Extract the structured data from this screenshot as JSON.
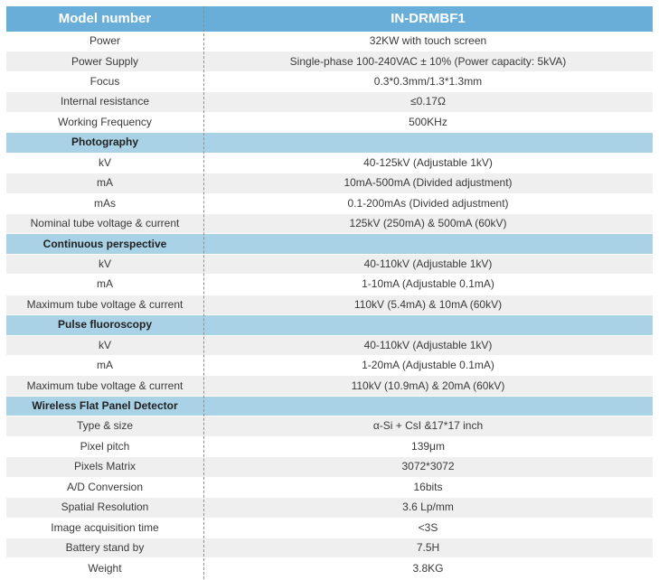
{
  "table": {
    "header": {
      "col1": "Model number",
      "col2": "IN-DRMBF1"
    },
    "colors": {
      "header_bg": "#68aed8",
      "header_text": "#ffffff",
      "section_bg": "#a9d2e6",
      "row_alt_bg": "#efefef",
      "body_text": "#3a3a3a",
      "divider": "#8f8f8f"
    },
    "rows": [
      {
        "type": "data",
        "shade": "white",
        "label": "Power",
        "value": "32KW with touch screen"
      },
      {
        "type": "data",
        "shade": "gray",
        "label": "Power Supply",
        "value": "Single-phase 100-240VAC ± 10% (Power capacity: 5kVA)"
      },
      {
        "type": "data",
        "shade": "white",
        "label": "Focus",
        "value": "0.3*0.3mm/1.3*1.3mm"
      },
      {
        "type": "data",
        "shade": "gray",
        "label": "Internal resistance",
        "value": "≤0.17Ω"
      },
      {
        "type": "data",
        "shade": "white",
        "label": "Working Frequency",
        "value": "500KHz"
      },
      {
        "type": "section",
        "label": "Photography",
        "value": ""
      },
      {
        "type": "data",
        "shade": "white",
        "label": "kV",
        "value": "40-125kV (Adjustable 1kV)"
      },
      {
        "type": "data",
        "shade": "gray",
        "label": "mA",
        "value": "10mA-500mA (Divided adjustment)"
      },
      {
        "type": "data",
        "shade": "white",
        "label": "mAs",
        "value": "0.1-200mAs (Divided adjustment)"
      },
      {
        "type": "data",
        "shade": "gray",
        "label": "Nominal tube voltage & current",
        "value": "125kV (250mA) & 500mA (60kV)"
      },
      {
        "type": "section",
        "label": "Continuous perspective",
        "value": ""
      },
      {
        "type": "data",
        "shade": "gray",
        "label": "kV",
        "value": "40-110kV (Adjustable 1kV)"
      },
      {
        "type": "data",
        "shade": "white",
        "label": "mA",
        "value": "1-10mA (Adjustable 0.1mA)"
      },
      {
        "type": "data",
        "shade": "gray",
        "label": "Maximum tube voltage & current",
        "value": "110kV (5.4mA) & 10mA (60kV)"
      },
      {
        "type": "section",
        "label": "Pulse fluoroscopy",
        "value": ""
      },
      {
        "type": "data",
        "shade": "gray",
        "label": "kV",
        "value": "40-110kV (Adjustable 1kV)"
      },
      {
        "type": "data",
        "shade": "white",
        "label": "mA",
        "value": "1-20mA (Adjustable 0.1mA)"
      },
      {
        "type": "data",
        "shade": "gray",
        "label": "Maximum tube voltage & current",
        "value": "110kV (10.9mA) & 20mA (60kV)"
      },
      {
        "type": "section",
        "label": "Wireless Flat Panel Detector",
        "value": ""
      },
      {
        "type": "data",
        "shade": "gray",
        "label": "Type & size",
        "value": "α-Si + CsI &17*17 inch"
      },
      {
        "type": "data",
        "shade": "white",
        "label": "Pixel pitch",
        "value": "139μm"
      },
      {
        "type": "data",
        "shade": "gray",
        "label": "Pixels Matrix",
        "value": "3072*3072"
      },
      {
        "type": "data",
        "shade": "white",
        "label": "A/D Conversion",
        "value": "16bits"
      },
      {
        "type": "data",
        "shade": "gray",
        "label": "Spatial Resolution",
        "value": "3.6 Lp/mm"
      },
      {
        "type": "data",
        "shade": "white",
        "label": "Image acquisition time",
        "value": "<3S"
      },
      {
        "type": "data",
        "shade": "gray",
        "label": "Battery stand by",
        "value": "7.5H"
      },
      {
        "type": "data",
        "shade": "white",
        "label": "Weight",
        "value": "3.8KG"
      }
    ]
  }
}
